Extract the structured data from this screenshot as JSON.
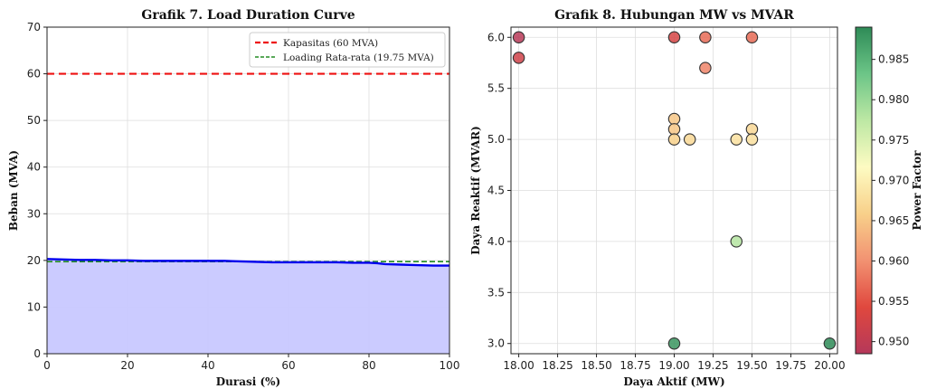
{
  "chart_data": [
    {
      "type": "area",
      "title": "Grafik 7. Load Duration Curve",
      "xlabel": "Durasi (%)",
      "ylabel": "Beban (MVA)",
      "xlim": [
        0,
        100
      ],
      "ylim": [
        0,
        70
      ],
      "xticks": [
        0,
        20,
        40,
        60,
        80,
        100
      ],
      "yticks": [
        0,
        10,
        20,
        30,
        40,
        50,
        60,
        70
      ],
      "grid": true,
      "legend_position": "top-right",
      "curve": {
        "x": [
          0,
          4,
          8,
          12,
          16,
          20,
          24,
          28,
          32,
          36,
          40,
          44,
          48,
          52,
          56,
          60,
          64,
          68,
          72,
          76,
          80,
          82,
          84,
          88,
          92,
          96,
          100
        ],
        "y": [
          20.3,
          20.2,
          20.1,
          20.1,
          20.0,
          20.0,
          19.9,
          19.9,
          19.9,
          19.9,
          19.9,
          19.9,
          19.8,
          19.7,
          19.6,
          19.6,
          19.6,
          19.6,
          19.6,
          19.5,
          19.5,
          19.4,
          19.2,
          19.1,
          19.0,
          18.9,
          18.9
        ],
        "color": "#0000ee",
        "fill": "#c8c8ff"
      },
      "reference_lines": [
        {
          "name": "Kapasitas (60 MVA)",
          "y": 60,
          "color": "#ee1111",
          "style": "dashed"
        },
        {
          "name": "Loading Rata-rata (19.75 MVA)",
          "y": 19.75,
          "color": "#228b22",
          "style": "dashed"
        }
      ]
    },
    {
      "type": "scatter",
      "title": "Grafik 8. Hubungan MW vs MVAR",
      "xlabel": "Daya Aktif (MW)",
      "ylabel": "Daya Reaktif (MVAR)",
      "xlim": [
        17.95,
        20.05
      ],
      "ylim": [
        2.9,
        6.1
      ],
      "xticks": [
        "18.00",
        "18.25",
        "18.50",
        "18.75",
        "19.00",
        "19.25",
        "19.50",
        "19.75",
        "20.00"
      ],
      "yticks": [
        "3.0",
        "3.5",
        "4.0",
        "4.5",
        "5.0",
        "5.5",
        "6.0"
      ],
      "grid": true,
      "points": [
        {
          "x": 18.0,
          "y": 6.0,
          "pf": 0.949
        },
        {
          "x": 18.0,
          "y": 5.8,
          "pf": 0.952
        },
        {
          "x": 19.0,
          "y": 6.0,
          "pf": 0.953
        },
        {
          "x": 19.2,
          "y": 6.0,
          "pf": 0.957
        },
        {
          "x": 19.5,
          "y": 6.0,
          "pf": 0.957
        },
        {
          "x": 19.2,
          "y": 5.7,
          "pf": 0.959
        },
        {
          "x": 19.0,
          "y": 5.2,
          "pf": 0.965
        },
        {
          "x": 19.0,
          "y": 5.1,
          "pf": 0.965
        },
        {
          "x": 19.0,
          "y": 5.0,
          "pf": 0.966
        },
        {
          "x": 19.1,
          "y": 5.0,
          "pf": 0.967
        },
        {
          "x": 19.4,
          "y": 5.0,
          "pf": 0.968
        },
        {
          "x": 19.5,
          "y": 5.1,
          "pf": 0.967
        },
        {
          "x": 19.5,
          "y": 5.0,
          "pf": 0.968
        },
        {
          "x": 19.4,
          "y": 4.0,
          "pf": 0.978
        },
        {
          "x": 19.0,
          "y": 3.0,
          "pf": 0.988
        },
        {
          "x": 20.0,
          "y": 3.0,
          "pf": 0.989
        }
      ],
      "colorbar": {
        "label": "Power Factor",
        "min": 0.9485,
        "max": 0.989,
        "ticks": [
          "0.950",
          "0.955",
          "0.960",
          "0.965",
          "0.970",
          "0.975",
          "0.980",
          "0.985"
        ],
        "stops": [
          "#b5385a",
          "#e0483e",
          "#f29272",
          "#f8d08a",
          "#fdfbc2",
          "#bde8a4",
          "#6cc587",
          "#2e8b57"
        ]
      }
    }
  ]
}
